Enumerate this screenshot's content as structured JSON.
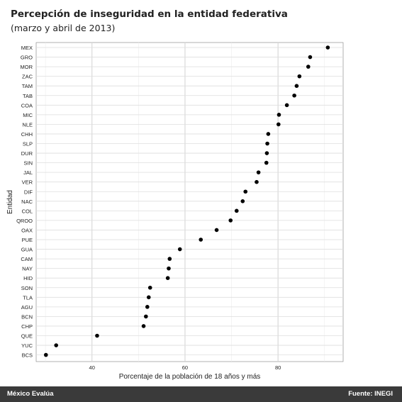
{
  "chart_data": {
    "type": "scatter",
    "title": "Percepción de inseguridad en la entidad federativa",
    "subtitle": "(marzo y abril de 2013)",
    "xlabel": "Porcentaje de la población de 18 años y más",
    "ylabel": "Entidad",
    "xlim": [
      28,
      94
    ],
    "xticks": [
      "40",
      "60",
      "80"
    ],
    "grid": true,
    "point_color": "#000000",
    "categories": [
      "MEX",
      "GRO",
      "MOR",
      "ZAC",
      "TAM",
      "TAB",
      "COA",
      "MIC",
      "NLE",
      "CHH",
      "SLP",
      "DUR",
      "SIN",
      "JAL",
      "VER",
      "DIF",
      "NAC",
      "COL",
      "QROO",
      "OAX",
      "PUE",
      "GUA",
      "CAM",
      "NAY",
      "HID",
      "SON",
      "TLA",
      "AGU",
      "BCN",
      "CHP",
      "QUE",
      "YUC",
      "BCS"
    ],
    "values": [
      90.7,
      86.9,
      86.5,
      84.6,
      84.0,
      83.5,
      81.9,
      80.2,
      80.1,
      77.9,
      77.7,
      77.6,
      77.5,
      75.8,
      75.4,
      73.0,
      72.4,
      71.1,
      69.8,
      66.8,
      63.4,
      58.9,
      56.7,
      56.5,
      56.3,
      52.5,
      52.2,
      51.9,
      51.6,
      51.1,
      41.1,
      32.3,
      30.1
    ]
  },
  "footer": {
    "left": "México Evalúa",
    "right": "Fuente: INEGI"
  }
}
